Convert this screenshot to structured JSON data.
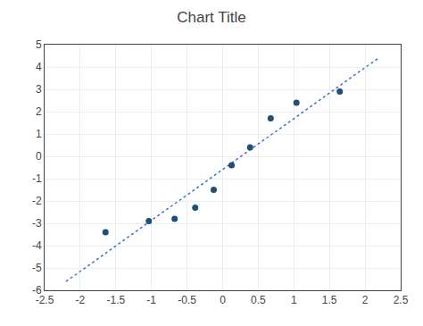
{
  "chart_data": {
    "type": "scatter",
    "title": "Chart Title",
    "grid": true,
    "xlim": [
      -2.5,
      2.5
    ],
    "xticks": [
      -2.5,
      -2,
      -1.5,
      -1,
      -0.5,
      0,
      0.5,
      1,
      1.5,
      2,
      2.5
    ],
    "ylim": [
      -6,
      5
    ],
    "yticks": [
      -6,
      -5,
      -4,
      -3,
      -2,
      -1,
      0,
      1,
      2,
      3,
      4,
      5
    ],
    "series": [
      {
        "type": "line",
        "color": "#4472C4",
        "line_style": "dotted",
        "x": [
          -2.2,
          2.2
        ],
        "values": [
          -5.6086,
          4.4286
        ]
      },
      {
        "type": "scatter",
        "color": "#1F4E79",
        "marker": "circle",
        "x": [
          -1.64485,
          -1.03643,
          -0.67449,
          -0.38532,
          -0.12566,
          0.125661,
          0.38532,
          0.67449,
          1.036433,
          1.644854
        ],
        "values": [
          -3.4,
          -2.9,
          -2.8,
          -2.3,
          -1.5,
          -0.4,
          0.4,
          1.7,
          2.4,
          2.9
        ]
      }
    ]
  }
}
